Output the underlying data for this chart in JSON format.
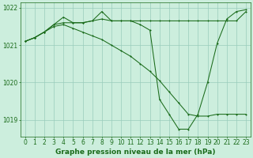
{
  "background_color": "#cceedd",
  "grid_color": "#99ccbb",
  "line_color": "#1a6b1a",
  "title": "Graphe pression niveau de la mer (hPa)",
  "title_fontsize": 6.5,
  "tick_fontsize": 5.5,
  "ylim": [
    1018.55,
    1022.15
  ],
  "xlim": [
    -0.5,
    23.5
  ],
  "yticks": [
    1019,
    1020,
    1021,
    1022
  ],
  "xticks": [
    0,
    1,
    2,
    3,
    4,
    5,
    6,
    7,
    8,
    9,
    10,
    11,
    12,
    13,
    14,
    15,
    16,
    17,
    18,
    19,
    20,
    21,
    22,
    23
  ],
  "series1_x": [
    0,
    1,
    2,
    3,
    4,
    5,
    6,
    7,
    8,
    9,
    10,
    11,
    12,
    13,
    14,
    15,
    16,
    17,
    18,
    19,
    20,
    21,
    22,
    23
  ],
  "series1_y": [
    1021.1,
    1021.2,
    1021.35,
    1021.55,
    1021.6,
    1021.6,
    1021.6,
    1021.65,
    1021.7,
    1021.65,
    1021.65,
    1021.65,
    1021.65,
    1021.65,
    1021.65,
    1021.65,
    1021.65,
    1021.65,
    1021.65,
    1021.65,
    1021.65,
    1021.65,
    1021.65,
    1021.9
  ],
  "series2_x": [
    0,
    1,
    2,
    3,
    4,
    5,
    6,
    7,
    8,
    9,
    10,
    11,
    12,
    13,
    14,
    15,
    16,
    17,
    18,
    19,
    20,
    21,
    22,
    23
  ],
  "series2_y": [
    1021.1,
    1021.2,
    1021.35,
    1021.55,
    1021.75,
    1021.6,
    1021.6,
    1021.65,
    1021.9,
    1021.65,
    1021.65,
    1021.65,
    1021.55,
    1021.4,
    1019.55,
    1019.15,
    1018.75,
    1018.75,
    1019.15,
    1020.0,
    1021.05,
    1021.7,
    1021.9,
    1021.95
  ],
  "series3_x": [
    0,
    1,
    2,
    3,
    4,
    5,
    6,
    7,
    8,
    9,
    10,
    11,
    12,
    13,
    14,
    15,
    16,
    17,
    18,
    19,
    20,
    21,
    22,
    23
  ],
  "series3_y": [
    1021.1,
    1021.2,
    1021.35,
    1021.5,
    1021.55,
    1021.45,
    1021.35,
    1021.25,
    1021.15,
    1021.0,
    1020.85,
    1020.7,
    1020.5,
    1020.3,
    1020.05,
    1019.75,
    1019.45,
    1019.15,
    1019.1,
    1019.1,
    1019.15,
    1019.15,
    1019.15,
    1019.15
  ],
  "marker_size": 2.0,
  "line_width": 0.75
}
